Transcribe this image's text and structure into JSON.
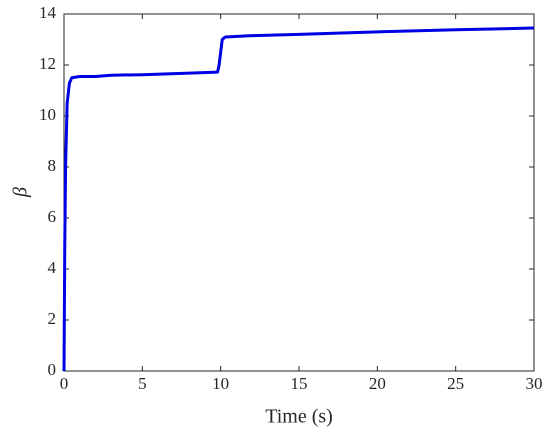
{
  "chart_data": {
    "type": "line",
    "x_label": "Time (s)",
    "y_label": "β",
    "x": [
      0,
      0.05,
      0.1,
      0.2,
      0.35,
      0.5,
      1,
      2,
      3,
      5,
      8,
      9.8,
      9.9,
      10.1,
      10.3,
      12,
      15,
      20,
      25,
      30
    ],
    "values": [
      0,
      5,
      8,
      10.5,
      11.3,
      11.5,
      11.55,
      11.55,
      11.6,
      11.62,
      11.68,
      11.72,
      12.0,
      13.0,
      13.1,
      13.15,
      13.2,
      13.3,
      13.38,
      13.45
    ],
    "color": "#0000e6",
    "xlim": [
      0,
      30
    ],
    "xticks": [
      0,
      5,
      10,
      15,
      20,
      25,
      30
    ],
    "ylim": [
      0,
      14
    ],
    "yticks": [
      0,
      2,
      4,
      6,
      8,
      10,
      12,
      14
    ],
    "grid": false
  }
}
